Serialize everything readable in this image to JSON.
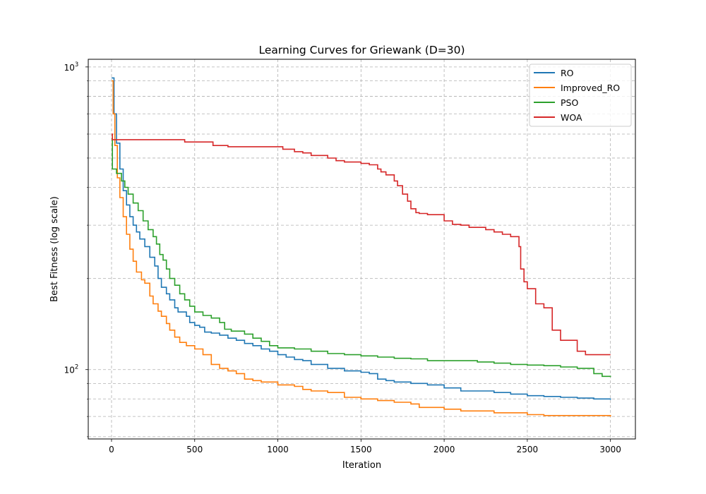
{
  "chart_data": {
    "type": "line",
    "title": "Learning Curves for Griewank (D=30)",
    "xlabel": "Iteration",
    "ylabel": "Best Fitness (log scale)",
    "xlim": [
      -140,
      3150
    ],
    "ylim": [
      59,
      1060
    ],
    "yscale": "log",
    "grid": true,
    "legend_position": "top-right",
    "x_ticks": [
      0,
      500,
      1000,
      1500,
      2000,
      2500,
      3000
    ],
    "x_tick_labels": [
      "0",
      "500",
      "1000",
      "1500",
      "2000",
      "2500",
      "3000"
    ],
    "y_major_ticks": [
      100,
      1000
    ],
    "y_tick_labels": [
      {
        "base": "10",
        "exp": "2"
      },
      {
        "base": "10",
        "exp": "3"
      }
    ],
    "y_minor_ticks": [
      60,
      70,
      80,
      90,
      200,
      300,
      400,
      500,
      600,
      700,
      800,
      900
    ],
    "series": [
      {
        "name": "RO",
        "color": "#1f77b4",
        "points": [
          [
            0,
            920
          ],
          [
            15,
            700
          ],
          [
            30,
            560
          ],
          [
            50,
            460
          ],
          [
            70,
            390
          ],
          [
            90,
            350
          ],
          [
            110,
            320
          ],
          [
            130,
            300
          ],
          [
            150,
            285
          ],
          [
            170,
            270
          ],
          [
            200,
            255
          ],
          [
            230,
            235
          ],
          [
            260,
            220
          ],
          [
            280,
            200
          ],
          [
            300,
            187
          ],
          [
            330,
            178
          ],
          [
            350,
            170
          ],
          [
            380,
            160
          ],
          [
            400,
            155
          ],
          [
            430,
            155
          ],
          [
            450,
            150
          ],
          [
            470,
            143
          ],
          [
            500,
            140
          ],
          [
            530,
            138
          ],
          [
            560,
            133
          ],
          [
            600,
            132
          ],
          [
            650,
            130
          ],
          [
            700,
            127
          ],
          [
            750,
            125
          ],
          [
            800,
            122
          ],
          [
            850,
            120
          ],
          [
            900,
            117
          ],
          [
            950,
            115
          ],
          [
            1000,
            112
          ],
          [
            1050,
            110
          ],
          [
            1100,
            108
          ],
          [
            1150,
            107
          ],
          [
            1200,
            104
          ],
          [
            1300,
            101
          ],
          [
            1400,
            99
          ],
          [
            1500,
            98
          ],
          [
            1550,
            97
          ],
          [
            1600,
            93
          ],
          [
            1650,
            92
          ],
          [
            1700,
            91
          ],
          [
            1800,
            90
          ],
          [
            1900,
            89
          ],
          [
            2000,
            87
          ],
          [
            2100,
            85
          ],
          [
            2200,
            85
          ],
          [
            2300,
            84
          ],
          [
            2400,
            83
          ],
          [
            2500,
            82
          ],
          [
            2600,
            81.5
          ],
          [
            2700,
            81
          ],
          [
            2800,
            80.5
          ],
          [
            2900,
            80
          ],
          [
            3000,
            79.5
          ]
        ]
      },
      {
        "name": "Improved_RO",
        "color": "#ff7f0e",
        "points": [
          [
            0,
            900
          ],
          [
            10,
            700
          ],
          [
            20,
            550
          ],
          [
            35,
            430
          ],
          [
            50,
            370
          ],
          [
            70,
            320
          ],
          [
            90,
            280
          ],
          [
            110,
            250
          ],
          [
            130,
            228
          ],
          [
            150,
            210
          ],
          [
            180,
            198
          ],
          [
            200,
            193
          ],
          [
            230,
            175
          ],
          [
            250,
            165
          ],
          [
            280,
            156
          ],
          [
            300,
            150
          ],
          [
            330,
            142
          ],
          [
            350,
            135
          ],
          [
            380,
            128
          ],
          [
            410,
            123
          ],
          [
            450,
            120
          ],
          [
            500,
            117
          ],
          [
            550,
            112
          ],
          [
            600,
            104
          ],
          [
            650,
            101
          ],
          [
            700,
            99
          ],
          [
            750,
            97
          ],
          [
            800,
            93
          ],
          [
            850,
            92
          ],
          [
            900,
            91
          ],
          [
            1000,
            89
          ],
          [
            1100,
            88
          ],
          [
            1150,
            86
          ],
          [
            1200,
            85
          ],
          [
            1300,
            84
          ],
          [
            1400,
            81
          ],
          [
            1500,
            80
          ],
          [
            1600,
            79
          ],
          [
            1700,
            78
          ],
          [
            1800,
            77
          ],
          [
            1850,
            75
          ],
          [
            1900,
            75
          ],
          [
            2000,
            74
          ],
          [
            2100,
            73
          ],
          [
            2200,
            73
          ],
          [
            2300,
            72
          ],
          [
            2400,
            72
          ],
          [
            2500,
            71
          ],
          [
            2600,
            70.5
          ],
          [
            2700,
            70.5
          ],
          [
            2800,
            70.5
          ],
          [
            2900,
            70.5
          ],
          [
            3000,
            70
          ]
        ]
      },
      {
        "name": "PSO",
        "color": "#2ca02c",
        "points": [
          [
            0,
            580
          ],
          [
            5,
            460
          ],
          [
            30,
            445
          ],
          [
            60,
            420
          ],
          [
            80,
            400
          ],
          [
            100,
            380
          ],
          [
            130,
            355
          ],
          [
            160,
            335
          ],
          [
            190,
            310
          ],
          [
            220,
            290
          ],
          [
            250,
            275
          ],
          [
            270,
            260
          ],
          [
            290,
            240
          ],
          [
            310,
            230
          ],
          [
            330,
            215
          ],
          [
            350,
            200
          ],
          [
            380,
            190
          ],
          [
            410,
            178
          ],
          [
            440,
            170
          ],
          [
            470,
            162
          ],
          [
            500,
            155
          ],
          [
            550,
            151
          ],
          [
            600,
            148
          ],
          [
            650,
            143
          ],
          [
            680,
            136
          ],
          [
            720,
            134
          ],
          [
            800,
            131
          ],
          [
            850,
            127
          ],
          [
            900,
            124
          ],
          [
            950,
            120
          ],
          [
            1000,
            118
          ],
          [
            1100,
            117
          ],
          [
            1200,
            115
          ],
          [
            1300,
            113
          ],
          [
            1400,
            112
          ],
          [
            1500,
            111
          ],
          [
            1600,
            110
          ],
          [
            1700,
            109
          ],
          [
            1800,
            108.5
          ],
          [
            1900,
            107
          ],
          [
            2000,
            107
          ],
          [
            2100,
            107
          ],
          [
            2200,
            106
          ],
          [
            2300,
            105
          ],
          [
            2400,
            104
          ],
          [
            2500,
            103.5
          ],
          [
            2600,
            103
          ],
          [
            2700,
            102
          ],
          [
            2800,
            101
          ],
          [
            2900,
            97
          ],
          [
            2950,
            95
          ],
          [
            3000,
            94.5
          ]
        ]
      },
      {
        "name": "WOA",
        "color": "#d62728",
        "points": [
          [
            0,
            600
          ],
          [
            5,
            575
          ],
          [
            100,
            575
          ],
          [
            200,
            575
          ],
          [
            300,
            575
          ],
          [
            430,
            575
          ],
          [
            440,
            565
          ],
          [
            500,
            565
          ],
          [
            600,
            565
          ],
          [
            610,
            550
          ],
          [
            700,
            545
          ],
          [
            800,
            545
          ],
          [
            900,
            545
          ],
          [
            1000,
            545
          ],
          [
            1030,
            535
          ],
          [
            1100,
            525
          ],
          [
            1150,
            520
          ],
          [
            1200,
            510
          ],
          [
            1300,
            500
          ],
          [
            1350,
            490
          ],
          [
            1400,
            485
          ],
          [
            1450,
            485
          ],
          [
            1500,
            480
          ],
          [
            1550,
            475
          ],
          [
            1600,
            460
          ],
          [
            1620,
            450
          ],
          [
            1650,
            440
          ],
          [
            1700,
            420
          ],
          [
            1720,
            405
          ],
          [
            1750,
            380
          ],
          [
            1780,
            360
          ],
          [
            1800,
            340
          ],
          [
            1830,
            330
          ],
          [
            1850,
            328
          ],
          [
            1900,
            325
          ],
          [
            1950,
            325
          ],
          [
            2000,
            310
          ],
          [
            2050,
            302
          ],
          [
            2100,
            300
          ],
          [
            2150,
            295
          ],
          [
            2200,
            295
          ],
          [
            2250,
            290
          ],
          [
            2300,
            285
          ],
          [
            2350,
            280
          ],
          [
            2400,
            275
          ],
          [
            2450,
            255
          ],
          [
            2460,
            215
          ],
          [
            2480,
            195
          ],
          [
            2500,
            185
          ],
          [
            2550,
            165
          ],
          [
            2600,
            160
          ],
          [
            2650,
            135
          ],
          [
            2700,
            125
          ],
          [
            2750,
            125
          ],
          [
            2780,
            125
          ],
          [
            2800,
            115
          ],
          [
            2850,
            112
          ],
          [
            3000,
            112
          ]
        ]
      }
    ]
  }
}
